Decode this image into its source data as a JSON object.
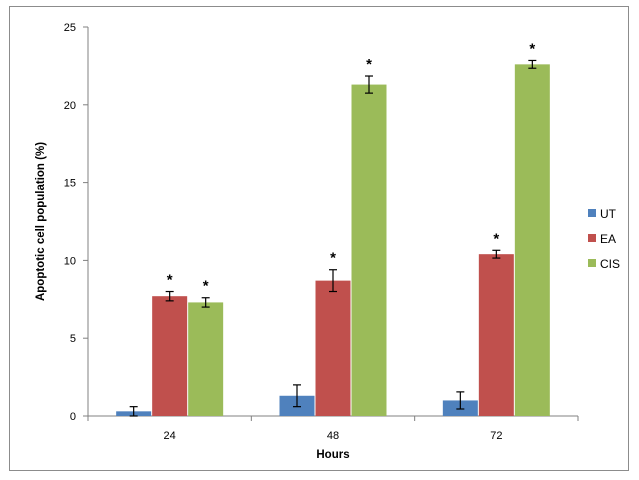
{
  "chart_data": {
    "type": "bar",
    "xlabel": "Hours",
    "ylabel": "Apoptotic cell population (%)",
    "categories": [
      "24",
      "48",
      "72"
    ],
    "ylim": [
      0,
      25
    ],
    "yticks": [
      0,
      5,
      10,
      15,
      20,
      25
    ],
    "grid": false,
    "legend_position": "right",
    "series": [
      {
        "name": "UT",
        "color": "#4f81bd",
        "values": [
          0.3,
          1.3,
          1.0
        ],
        "errors": [
          0.3,
          0.7,
          0.55
        ],
        "significance": [
          "",
          "",
          ""
        ]
      },
      {
        "name": "EA",
        "color": "#c0504d",
        "values": [
          7.7,
          8.7,
          10.4
        ],
        "errors": [
          0.3,
          0.7,
          0.25
        ],
        "significance": [
          "*",
          "*",
          "*"
        ]
      },
      {
        "name": "CIS",
        "color": "#9bbb59",
        "values": [
          7.3,
          21.3,
          22.6
        ],
        "errors": [
          0.3,
          0.55,
          0.25
        ],
        "significance": [
          "*",
          "*",
          "*"
        ]
      }
    ]
  }
}
